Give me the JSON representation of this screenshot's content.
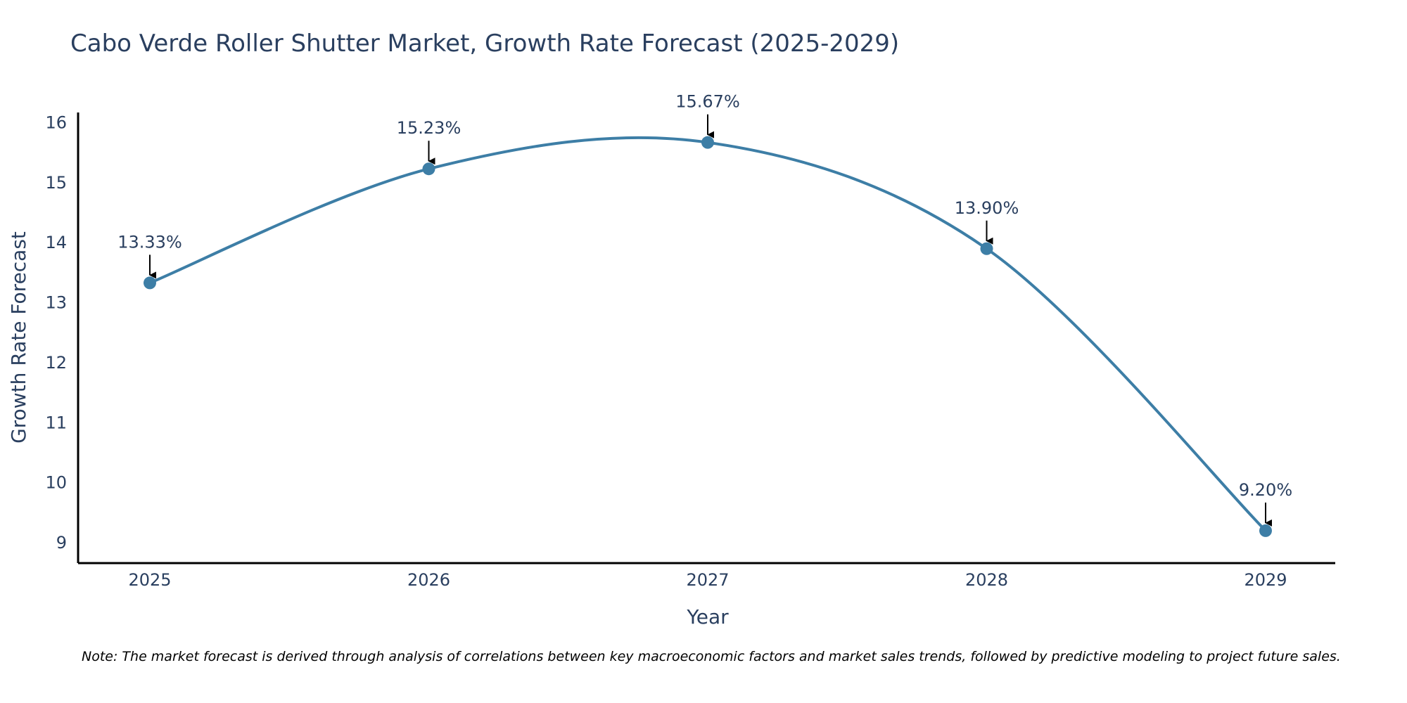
{
  "chart_data": {
    "type": "line",
    "title": "Cabo Verde Roller Shutter Market, Growth Rate Forecast (2025-2029)",
    "xlabel": "Year",
    "ylabel": "Growth Rate Forecast",
    "categories": [
      "2025",
      "2026",
      "2027",
      "2028",
      "2029"
    ],
    "values": [
      13.33,
      15.23,
      15.67,
      13.9,
      9.2
    ],
    "data_labels": [
      "13.33%",
      "15.23%",
      "15.67%",
      "13.90%",
      "9.20%"
    ],
    "y_ticks": [
      9,
      10,
      11,
      12,
      13,
      14,
      15,
      16
    ],
    "ylim": [
      8.66,
      16.17
    ],
    "grid": false,
    "line_color": "#3d7ea6",
    "note": "Note: The market forecast is derived through analysis of correlations between key macroeconomic factors and market sales trends, followed by predictive modeling to project future sales."
  }
}
